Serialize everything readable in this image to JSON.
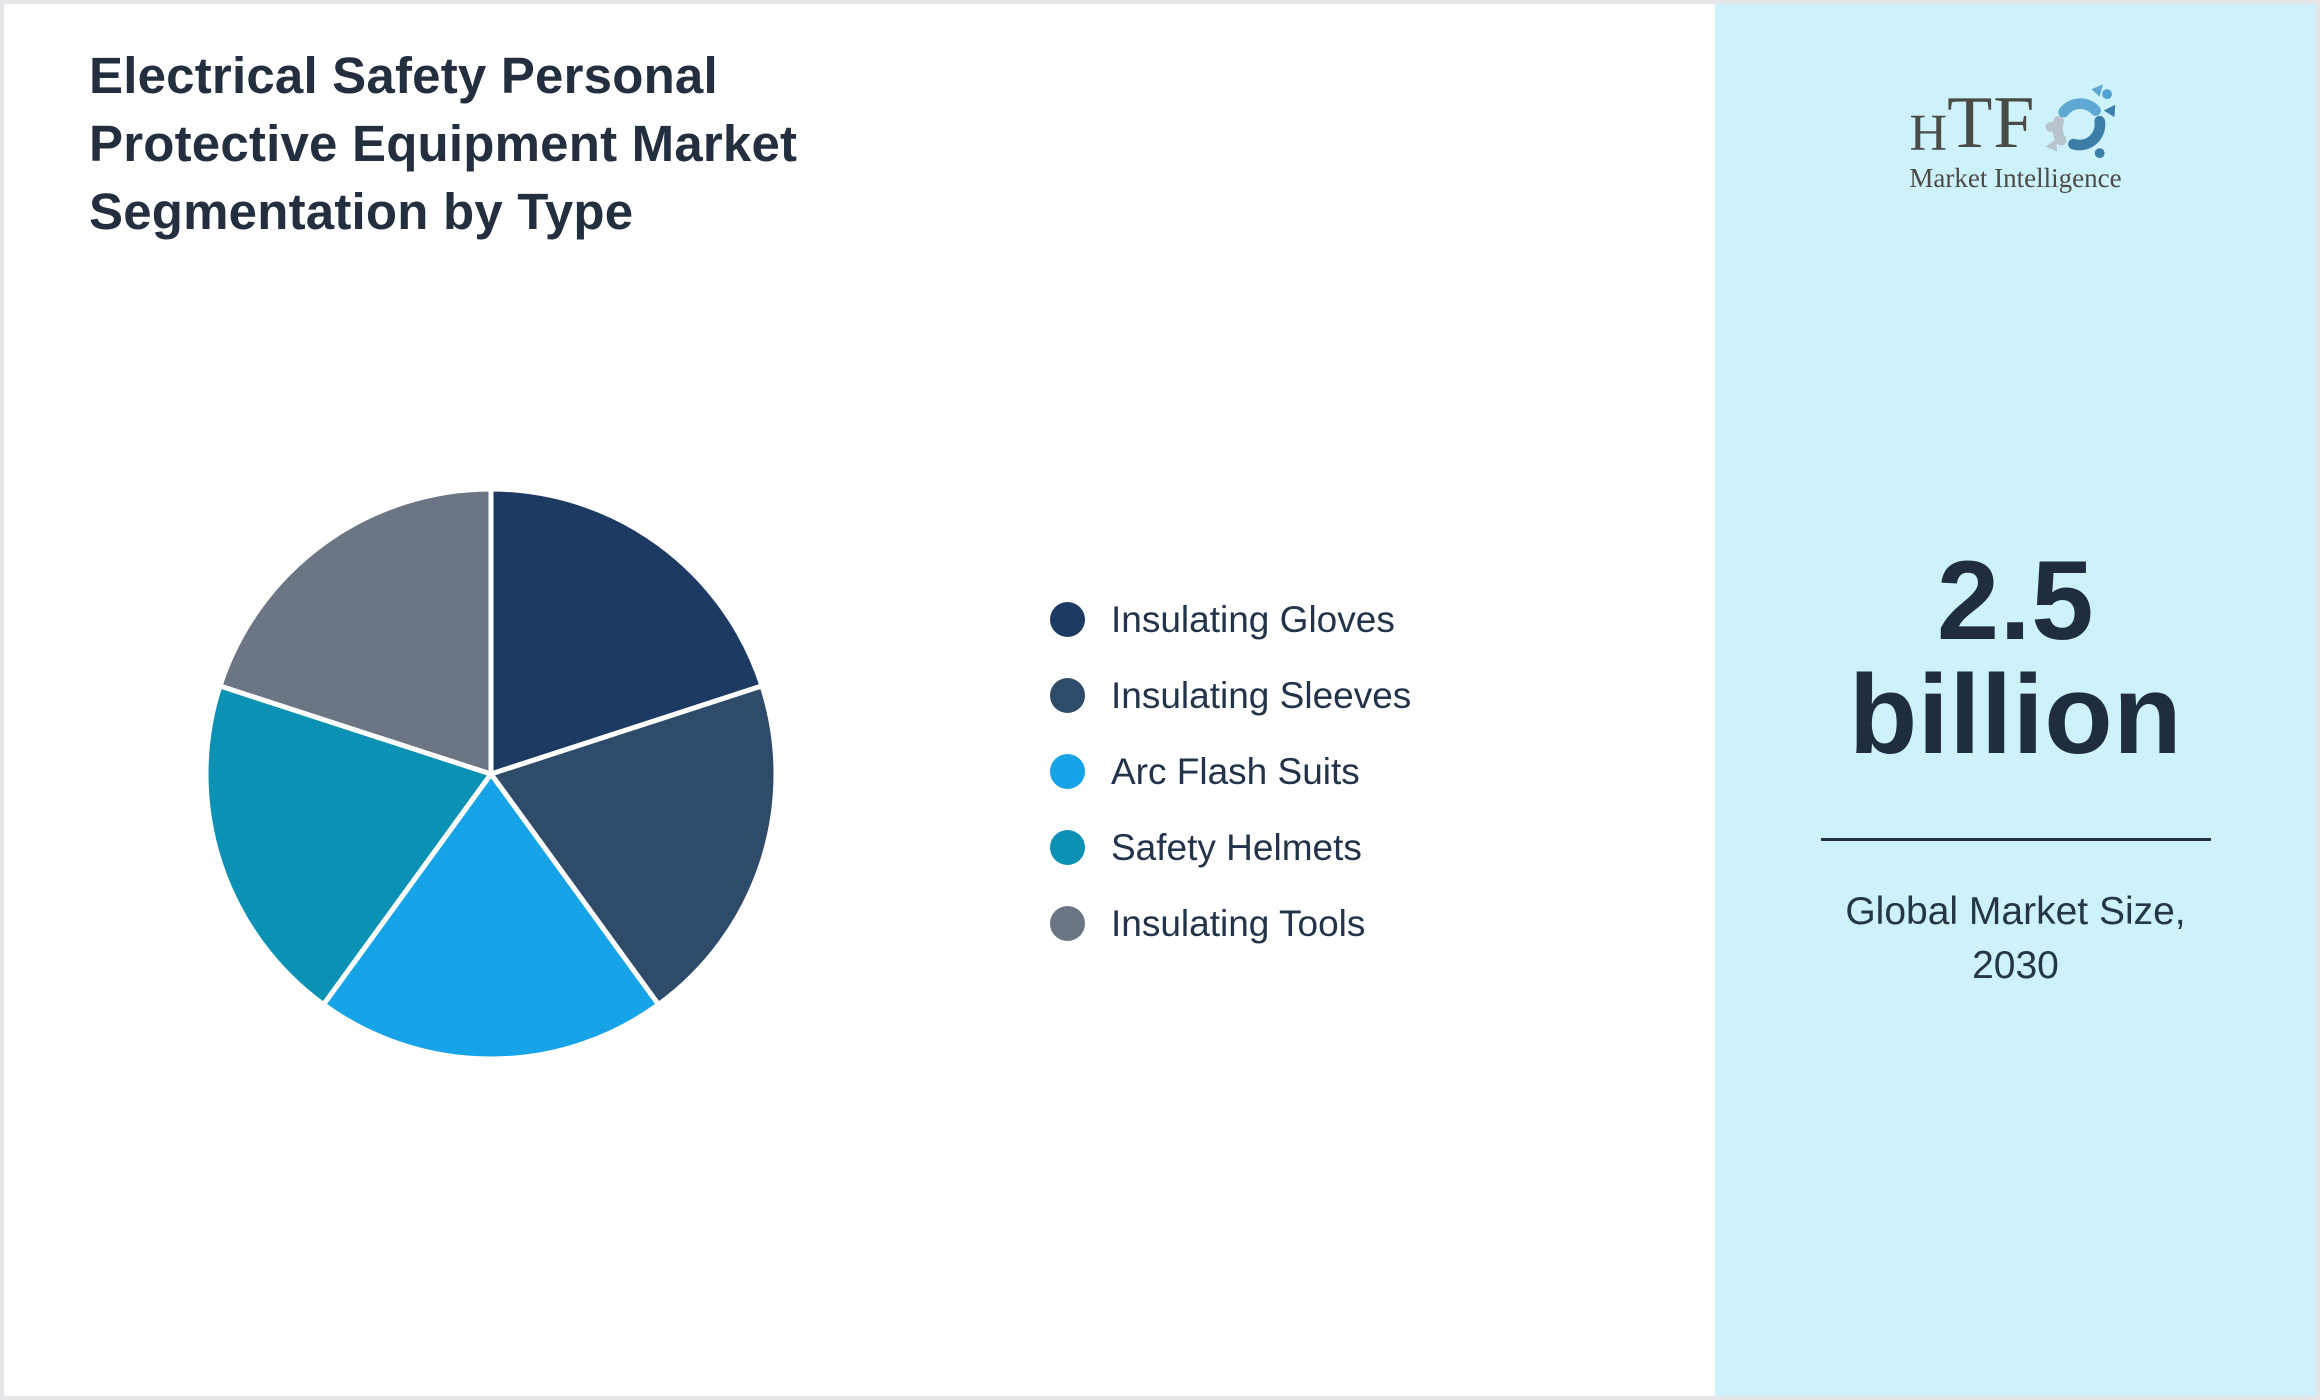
{
  "page": {
    "title_lines": [
      "Electrical Safety Personal",
      "Protective Equipment Market",
      "Segmentation by Type"
    ],
    "background": "#ffffff",
    "border_color": "#e4e6ea"
  },
  "chart_data": {
    "type": "pie",
    "title": "Electrical Safety Personal Protective Equipment Market Segmentation by Type",
    "categories": [
      "Insulating Gloves",
      "Insulating Sleeves",
      "Arc Flash Suits",
      "Safety Helmets",
      "Insulating Tools"
    ],
    "values": [
      20,
      20,
      20,
      20,
      20
    ],
    "values_note": "slices visually equal (~20% each, estimated; no data labels shown)",
    "colors": [
      "#1d3a63",
      "#2e4b69",
      "#16a3e8",
      "#0a91b4",
      "#6c7584"
    ],
    "start_angle_deg": 0,
    "direction": "clockwise",
    "slice_border_color": "#ffffff",
    "legend_position": "right",
    "data_labels": false
  },
  "sidebar": {
    "background": "#cdf2fb",
    "logo": {
      "brand": "HTF",
      "tagline": "Market Intelligence",
      "swirl_colors": [
        "#5fa8d3",
        "#b9c3ce",
        "#3d7ea8"
      ]
    },
    "market_size": {
      "value_lines": [
        "2.5",
        "billion"
      ],
      "caption_lines": [
        "Global Market Size,",
        "2030"
      ]
    }
  }
}
